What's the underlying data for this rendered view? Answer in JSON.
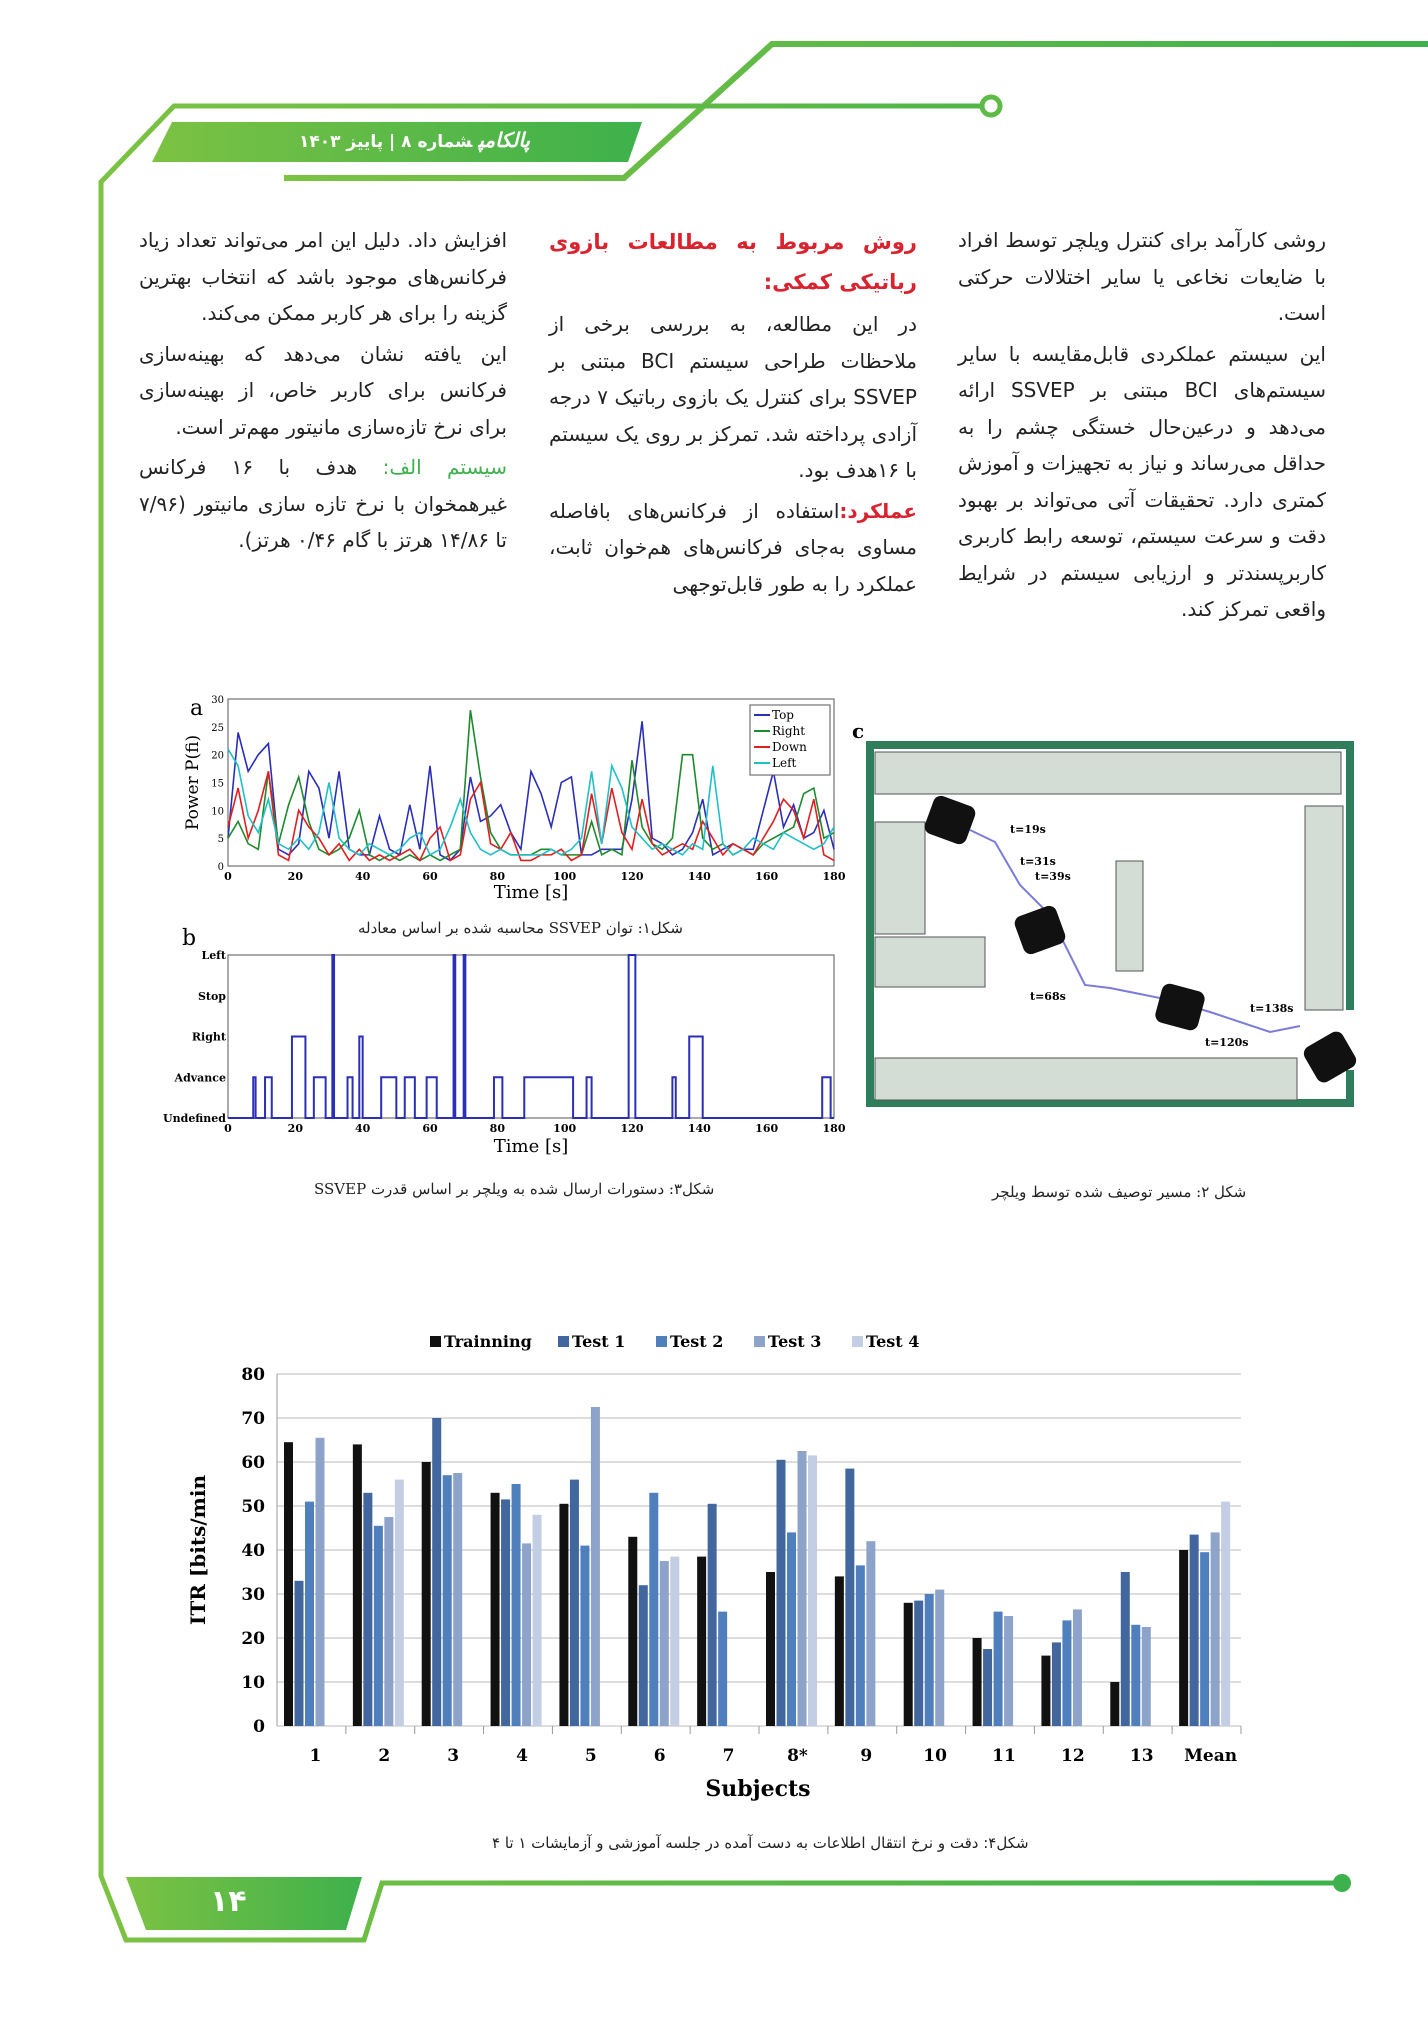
{
  "header": {
    "logo": "پالکامپ",
    "issue": "شماره ۸ | پاییز ۱۴۰۳",
    "accent": "#5dbb46"
  },
  "footer": {
    "page_number": "۱۴"
  },
  "columns": {
    "right": [
      "روشی کارآمد برای کنترل ویلچر توسط افراد با ضایعات نخاعی یا سایر اختلالات حرکتی است.",
      "این سیستم عملکردی قابل‌مقایسه با سایر سیستم‌های BCI مبتنی بر SSVEP ارائه می‌دهد و درعین‌حال خستگی چشم را به حداقل می‌رساند و نیاز به تجهیزات و آموزش کمتری دارد. تحقیقات آتی می‌تواند بر بهبود دقت و سرعت سیستم، توسعه رابط کاربری کاربرپسندتر و ارزیابی سیستم در شرایط واقعی تمرکز کند."
    ],
    "middle": {
      "heading": "روش مربوط به مطالعات بازوی رباتیکی کمکی:",
      "p1": "در این مطالعه، به بررسی برخی از ملاحظات طراحی سیستم BCI مبتنی بر SSVEP برای کنترل یک بازوی رباتیک ۷ درجه آزادی پرداخته شد. تمرکز بر روی یک سیستم با ۱۶هدف بود.",
      "p2_label": "عملکرد:",
      "p2": "استفاده از فرکانس‌های بافاصله مساوی به‌جای فرکانس‌های هم‌خوان ثابت، عملکرد را به طور قابل‌توجهی"
    },
    "left": {
      "p1": "افزایش داد. دلیل این امر می‌تواند تعداد زیاد فرکانس‌های موجود باشد که انتخاب بهترین گزینه را برای هر کاربر ممکن می‌کند.",
      "p2": "این یافته نشان می‌دهد که بهینه‌سازی فرکانس برای کاربر خاص، از بهینه‌سازی برای نرخ تازه‌سازی مانیتور مهم‌تر است.",
      "p3_label": "سیستم الف:",
      "p3": " هدف با ۱۶ فرکانس غیرهمخوان با نرخ تازه سازی مانیتور (۷/۹۶ تا ۱۴/۸۶ هرتز با گام ۰/۴۶ هرتز)."
    }
  },
  "captions": {
    "fig1": "شکل۱: توان SSVEP محاسبه شده بر اساس معادله",
    "fig2": "شکل ۲: مسیر توصیف شده توسط ویلچر",
    "fig3": "شکل۳: دستورات ارسال شده به ویلچر بر اساس قدرت SSVEP",
    "fig4": "شکل۴: دقت و نرخ انتقال اطلاعات  به دست آمده در جلسه آموزشی و آزمایشات ۱ تا ۴"
  },
  "chart_data": [
    {
      "panel": "a",
      "type": "line",
      "xlabel": "Time [s]",
      "ylabel": "Power P(fi)",
      "xlim": [
        0,
        180
      ],
      "ylim": [
        0,
        30
      ],
      "xticks": [
        0,
        20,
        40,
        60,
        80,
        100,
        120,
        140,
        160,
        180
      ],
      "yticks": [
        0,
        5,
        10,
        15,
        20,
        25,
        30
      ],
      "legend": "top-right",
      "x": [
        0,
        3,
        6,
        9,
        12,
        15,
        18,
        21,
        24,
        27,
        30,
        33,
        36,
        39,
        42,
        45,
        48,
        51,
        54,
        57,
        60,
        63,
        66,
        69,
        72,
        75,
        78,
        81,
        84,
        87,
        90,
        93,
        96,
        99,
        102,
        105,
        108,
        111,
        114,
        117,
        120,
        123,
        126,
        129,
        132,
        135,
        138,
        141,
        144,
        147,
        150,
        153,
        156,
        159,
        162,
        165,
        168,
        171,
        174,
        177,
        180
      ],
      "series": [
        {
          "name": "Top",
          "color": "#2b2fb8",
          "values": [
            5,
            24,
            17,
            20,
            22,
            3,
            2,
            4,
            17,
            14,
            5,
            17,
            3,
            2,
            2,
            9,
            3,
            2,
            11,
            3,
            18,
            2,
            1,
            3,
            16,
            8,
            9,
            11,
            6,
            3,
            17,
            13,
            7,
            15,
            16,
            2,
            2,
            3,
            3,
            3,
            12,
            26,
            5,
            4,
            2,
            3,
            6,
            12,
            2,
            3,
            4,
            3,
            3,
            10,
            17,
            7,
            11,
            5,
            6,
            10,
            3
          ]
        },
        {
          "name": "Right",
          "color": "#1e8a2e",
          "values": [
            5,
            8,
            4,
            3,
            17,
            4,
            11,
            16,
            8,
            3,
            2,
            3,
            5,
            10,
            2,
            1,
            2,
            1,
            2,
            1,
            2,
            1,
            2,
            3,
            28,
            16,
            6,
            3,
            2,
            2,
            2,
            3,
            3,
            2,
            2,
            2,
            8,
            2,
            3,
            2,
            19,
            7,
            4,
            3,
            5,
            20,
            20,
            5,
            3,
            4,
            2,
            3,
            2,
            4,
            5,
            6,
            7,
            13,
            14,
            5,
            6
          ]
        },
        {
          "name": "Down",
          "color": "#e02020",
          "values": [
            7,
            14,
            5,
            10,
            17,
            2,
            1,
            10,
            7,
            5,
            2,
            4,
            1,
            3,
            1,
            2,
            1,
            2,
            3,
            1,
            5,
            7,
            1,
            2,
            12,
            15,
            4,
            3,
            6,
            1,
            1,
            2,
            2,
            3,
            1,
            2,
            13,
            4,
            14,
            6,
            3,
            12,
            4,
            2,
            3,
            4,
            3,
            8,
            5,
            2,
            4,
            3,
            2,
            5,
            8,
            12,
            10,
            5,
            12,
            2,
            1
          ]
        },
        {
          "name": "Left",
          "color": "#20c0c8",
          "values": [
            21,
            18,
            9,
            6,
            12,
            4,
            3,
            5,
            3,
            6,
            15,
            5,
            3,
            2,
            4,
            3,
            2,
            3,
            5,
            6,
            2,
            3,
            7,
            12,
            6,
            3,
            2,
            3,
            2,
            2,
            2,
            2,
            3,
            2,
            3,
            5,
            17,
            4,
            18,
            14,
            7,
            5,
            3,
            4,
            3,
            2,
            4,
            3,
            18,
            4,
            2,
            3,
            5,
            4,
            3,
            6,
            5,
            4,
            3,
            4,
            7
          ]
        }
      ]
    },
    {
      "panel": "b",
      "type": "line",
      "xlabel": "Time [s]",
      "xlim": [
        0,
        180
      ],
      "xticks": [
        0,
        20,
        40,
        60,
        80,
        100,
        120,
        140,
        160,
        180
      ],
      "categories": [
        "Undefined",
        "Advance",
        "Right",
        "Stop",
        "Left"
      ],
      "color": "#2b2fb8",
      "pulses": [
        [
          7.5,
          8.2,
          "Advance"
        ],
        [
          11,
          13,
          "Advance"
        ],
        [
          19,
          23,
          "Right"
        ],
        [
          25.5,
          29,
          "Advance"
        ],
        [
          31,
          31.5,
          "Left"
        ],
        [
          35.5,
          37,
          "Advance"
        ],
        [
          39,
          40,
          "Right"
        ],
        [
          45.5,
          50,
          "Advance"
        ],
        [
          52.5,
          55.5,
          "Advance"
        ],
        [
          59,
          62,
          "Advance"
        ],
        [
          67,
          67.5,
          "Left"
        ],
        [
          70,
          70.5,
          "Left"
        ],
        [
          79,
          81.5,
          "Advance"
        ],
        [
          88,
          102.5,
          "Advance"
        ],
        [
          106.5,
          108,
          "Advance"
        ],
        [
          119,
          121,
          "Left"
        ],
        [
          132,
          133,
          "Advance"
        ],
        [
          137,
          141,
          "Right"
        ],
        [
          176.5,
          179,
          "Advance"
        ]
      ]
    },
    {
      "panel": "c",
      "type": "diagram",
      "time_labels": [
        "t=19s",
        "t=31s",
        "t=39s",
        "t=68s",
        "t=120s",
        "t=138s"
      ],
      "wall_color": "#2e7d5b",
      "obstacle_color": "#d3ddd5",
      "path_color": "#7b7bd9"
    },
    {
      "type": "bar",
      "xlabel": "Subjects",
      "ylabel": "ITR [bits/min",
      "ylim": [
        0,
        80
      ],
      "yticks": [
        0,
        10,
        20,
        30,
        40,
        50,
        60,
        70,
        80
      ],
      "grid": true,
      "legend": "top",
      "categories": [
        "1",
        "2",
        "3",
        "4",
        "5",
        "6",
        "7",
        "8*",
        "9",
        "10",
        "11",
        "12",
        "13",
        "Mean"
      ],
      "series": [
        {
          "name": "Trainning",
          "color": "#111111",
          "values": [
            64.5,
            64,
            60,
            53,
            50.5,
            43,
            38.5,
            35,
            34,
            28,
            20,
            16,
            10,
            40
          ]
        },
        {
          "name": "Test 1",
          "color": "#41679e",
          "values": [
            33,
            53,
            70,
            51.5,
            56,
            32,
            50.5,
            60.5,
            58.5,
            28.5,
            17.5,
            19,
            35,
            43.5
          ]
        },
        {
          "name": "Test 2",
          "color": "#4f7fbd",
          "values": [
            51,
            45.5,
            57,
            55,
            41,
            53,
            26,
            44,
            36.5,
            30,
            26,
            24,
            23,
            39.5
          ]
        },
        {
          "name": "Test 3",
          "color": "#8da3c9",
          "values": [
            65.5,
            47.5,
            57.5,
            41.5,
            72.5,
            37.5,
            null,
            62.5,
            42,
            31,
            25,
            26.5,
            22.5,
            44
          ]
        },
        {
          "name": "Test 4",
          "color": "#c3cde4",
          "values": [
            null,
            56,
            null,
            48,
            null,
            38.5,
            null,
            61.5,
            null,
            null,
            null,
            null,
            null,
            51
          ]
        }
      ]
    }
  ]
}
